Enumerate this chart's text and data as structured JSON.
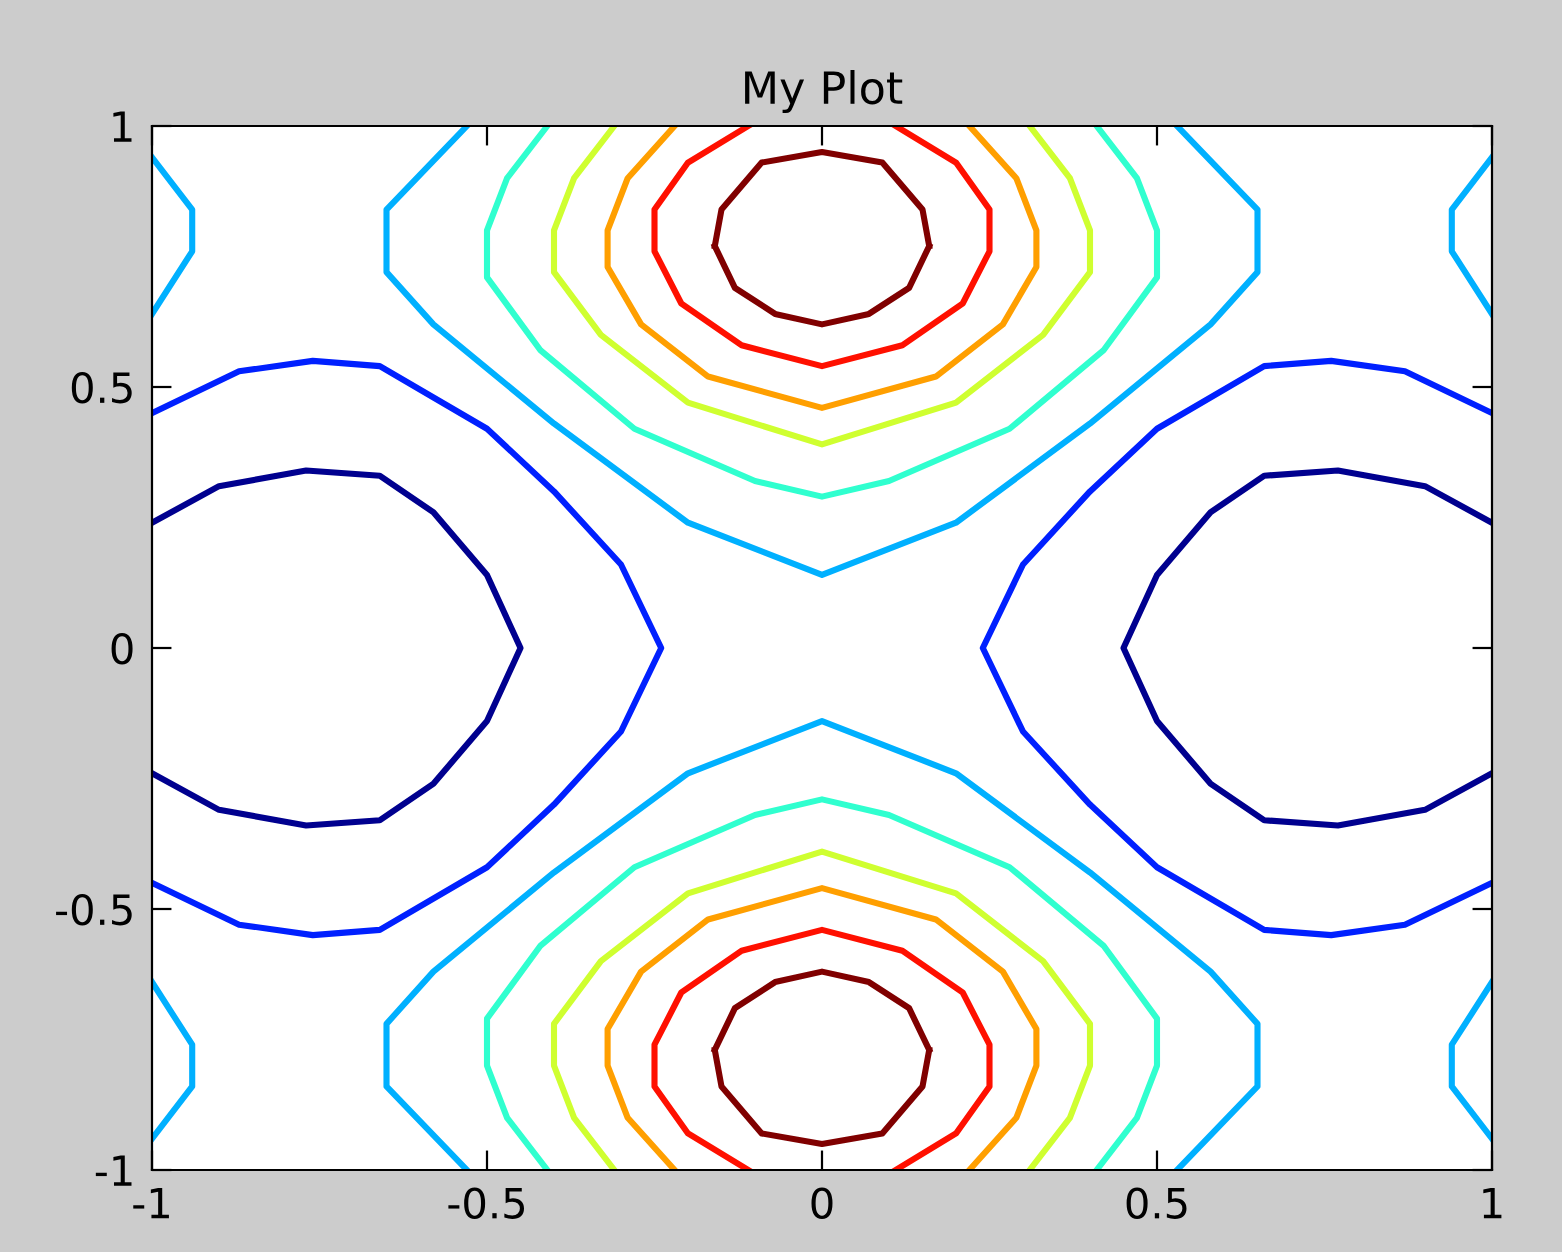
{
  "chart_data": {
    "type": "line",
    "title": "My Plot",
    "xlim": [
      -1,
      1
    ],
    "ylim": [
      -1,
      1
    ],
    "xticks": [
      -1,
      -0.5,
      0,
      0.5,
      1
    ],
    "yticks": [
      -1,
      -0.5,
      0,
      0.5,
      1
    ],
    "grid": false,
    "marker": "none",
    "line_style": "solid",
    "series": [
      {
        "color": "#800000",
        "x": [
          -0.16,
          -0.15,
          -0.09,
          0,
          0.09,
          0.15,
          0.16
        ],
        "values": [
          0.77,
          0.84,
          0.93,
          0.95,
          0.93,
          0.84,
          0.77
        ]
      },
      {
        "color": "#800000",
        "x": [
          -0.16,
          -0.13,
          -0.07,
          0,
          0.07,
          0.13,
          0.16
        ],
        "values": [
          0.77,
          0.69,
          0.64,
          0.62,
          0.64,
          0.69,
          0.77
        ]
      },
      {
        "color": "#ff1000",
        "x": [
          -0.11,
          -0.2,
          -0.25,
          -0.25,
          -0.21,
          -0.12,
          0,
          0.12,
          0.21,
          0.25,
          0.25,
          0.2,
          0.11
        ],
        "values": [
          1,
          0.93,
          0.84,
          0.76,
          0.66,
          0.58,
          0.54,
          0.58,
          0.66,
          0.76,
          0.84,
          0.93,
          1
        ]
      },
      {
        "color": "#ff9f00",
        "x": [
          -0.22,
          -0.29,
          -0.32,
          -0.32,
          -0.27,
          -0.17,
          0,
          0.17,
          0.27,
          0.32,
          0.32,
          0.29,
          0.22
        ],
        "values": [
          1,
          0.9,
          0.8,
          0.73,
          0.62,
          0.52,
          0.46,
          0.52,
          0.62,
          0.73,
          0.8,
          0.9,
          1
        ]
      },
      {
        "color": "#cfff30",
        "x": [
          -0.31,
          -0.37,
          -0.4,
          -0.4,
          -0.33,
          -0.2,
          0,
          0.2,
          0.33,
          0.4,
          0.4,
          0.37,
          0.31
        ],
        "values": [
          1,
          0.9,
          0.8,
          0.72,
          0.6,
          0.47,
          0.39,
          0.47,
          0.6,
          0.72,
          0.8,
          0.9,
          1
        ]
      },
      {
        "color": "#30ffcf",
        "x": [
          -0.41,
          -0.47,
          -0.5,
          -0.5,
          -0.42,
          -0.28,
          -0.1,
          0,
          0.1,
          0.28,
          0.42,
          0.5,
          0.5,
          0.47,
          0.41
        ],
        "values": [
          1,
          0.9,
          0.8,
          0.71,
          0.57,
          0.42,
          0.32,
          0.29,
          0.32,
          0.42,
          0.57,
          0.71,
          0.8,
          0.9,
          1
        ]
      },
      {
        "color": "#00b0ff",
        "x": [
          -0.53,
          -0.65,
          -0.65,
          -0.58,
          -0.4,
          -0.2,
          0,
          0.2,
          0.4,
          0.58,
          0.65,
          0.65,
          0.53
        ],
        "values": [
          1,
          0.84,
          0.72,
          0.62,
          0.43,
          0.24,
          0.14,
          0.24,
          0.43,
          0.62,
          0.72,
          0.84,
          1
        ]
      },
      {
        "color": "#00b0ff",
        "x": [
          -1,
          -0.94,
          -0.94,
          -1
        ],
        "values": [
          0.94,
          0.84,
          0.76,
          0.64
        ]
      },
      {
        "color": "#00b0ff",
        "x": [
          1,
          0.94,
          0.94,
          1
        ],
        "values": [
          0.94,
          0.84,
          0.76,
          0.64
        ]
      },
      {
        "color": "#800000",
        "x": [
          -0.16,
          -0.15,
          -0.09,
          0,
          0.09,
          0.15,
          0.16
        ],
        "values": [
          -0.77,
          -0.84,
          -0.93,
          -0.95,
          -0.93,
          -0.84,
          -0.77
        ]
      },
      {
        "color": "#800000",
        "x": [
          -0.16,
          -0.13,
          -0.07,
          0,
          0.07,
          0.13,
          0.16
        ],
        "values": [
          -0.77,
          -0.69,
          -0.64,
          -0.62,
          -0.64,
          -0.69,
          -0.77
        ]
      },
      {
        "color": "#ff1000",
        "x": [
          -0.11,
          -0.2,
          -0.25,
          -0.25,
          -0.21,
          -0.12,
          0,
          0.12,
          0.21,
          0.25,
          0.25,
          0.2,
          0.11
        ],
        "values": [
          -1,
          -0.93,
          -0.84,
          -0.76,
          -0.66,
          -0.58,
          -0.54,
          -0.58,
          -0.66,
          -0.76,
          -0.84,
          -0.93,
          -1
        ]
      },
      {
        "color": "#ff9f00",
        "x": [
          -0.22,
          -0.29,
          -0.32,
          -0.32,
          -0.27,
          -0.17,
          0,
          0.17,
          0.27,
          0.32,
          0.32,
          0.29,
          0.22
        ],
        "values": [
          -1,
          -0.9,
          -0.8,
          -0.73,
          -0.62,
          -0.52,
          -0.46,
          -0.52,
          -0.62,
          -0.73,
          -0.8,
          -0.9,
          -1
        ]
      },
      {
        "color": "#cfff30",
        "x": [
          -0.31,
          -0.37,
          -0.4,
          -0.4,
          -0.33,
          -0.2,
          0,
          0.2,
          0.33,
          0.4,
          0.4,
          0.37,
          0.31
        ],
        "values": [
          -1,
          -0.9,
          -0.8,
          -0.72,
          -0.6,
          -0.47,
          -0.39,
          -0.47,
          -0.6,
          -0.72,
          -0.8,
          -0.9,
          -1
        ]
      },
      {
        "color": "#30ffcf",
        "x": [
          -0.41,
          -0.47,
          -0.5,
          -0.5,
          -0.42,
          -0.28,
          -0.1,
          0,
          0.1,
          0.28,
          0.42,
          0.5,
          0.5,
          0.47,
          0.41
        ],
        "values": [
          -1,
          -0.9,
          -0.8,
          -0.71,
          -0.57,
          -0.42,
          -0.32,
          -0.29,
          -0.32,
          -0.42,
          -0.57,
          -0.71,
          -0.8,
          -0.9,
          -1
        ]
      },
      {
        "color": "#00b0ff",
        "x": [
          -0.53,
          -0.65,
          -0.65,
          -0.58,
          -0.4,
          -0.2,
          0,
          0.2,
          0.4,
          0.58,
          0.65,
          0.65,
          0.53
        ],
        "values": [
          -1,
          -0.84,
          -0.72,
          -0.62,
          -0.43,
          -0.24,
          -0.14,
          -0.24,
          -0.43,
          -0.62,
          -0.72,
          -0.84,
          -1
        ]
      },
      {
        "color": "#00b0ff",
        "x": [
          -1,
          -0.94,
          -0.94,
          -1
        ],
        "values": [
          -0.94,
          -0.84,
          -0.76,
          -0.64
        ]
      },
      {
        "color": "#00b0ff",
        "x": [
          1,
          0.94,
          0.94,
          1
        ],
        "values": [
          -0.94,
          -0.84,
          -0.76,
          -0.64
        ]
      },
      {
        "color": "#0020ff",
        "x": [
          -1,
          -0.87,
          -0.76,
          -0.66,
          -0.5,
          -0.4,
          -0.3,
          -0.24,
          -0.3,
          -0.4,
          -0.5,
          -0.66,
          -0.76,
          -0.87,
          -1
        ],
        "values": [
          0.45,
          0.53,
          0.55,
          0.54,
          0.42,
          0.3,
          0.16,
          0,
          -0.16,
          -0.3,
          -0.42,
          -0.54,
          -0.55,
          -0.53,
          -0.45
        ]
      },
      {
        "color": "#00008f",
        "x": [
          -1,
          -0.9,
          -0.77,
          -0.66,
          -0.58,
          -0.5,
          -0.45,
          -0.5,
          -0.58,
          -0.66,
          -0.77,
          -0.9,
          -1
        ],
        "values": [
          0.24,
          0.31,
          0.34,
          0.33,
          0.26,
          0.14,
          0,
          -0.14,
          -0.26,
          -0.33,
          -0.34,
          -0.31,
          -0.24
        ]
      },
      {
        "color": "#0020ff",
        "x": [
          1,
          0.87,
          0.76,
          0.66,
          0.5,
          0.4,
          0.3,
          0.24,
          0.3,
          0.4,
          0.5,
          0.66,
          0.76,
          0.87,
          1
        ],
        "values": [
          0.45,
          0.53,
          0.55,
          0.54,
          0.42,
          0.3,
          0.16,
          0,
          -0.16,
          -0.3,
          -0.42,
          -0.54,
          -0.55,
          -0.53,
          -0.45
        ]
      },
      {
        "color": "#00008f",
        "x": [
          1,
          0.9,
          0.77,
          0.66,
          0.58,
          0.5,
          0.45,
          0.5,
          0.58,
          0.66,
          0.77,
          0.9,
          1
        ],
        "values": [
          0.24,
          0.31,
          0.34,
          0.33,
          0.26,
          0.14,
          0,
          -0.14,
          -0.26,
          -0.33,
          -0.34,
          -0.31,
          -0.24
        ]
      }
    ]
  }
}
